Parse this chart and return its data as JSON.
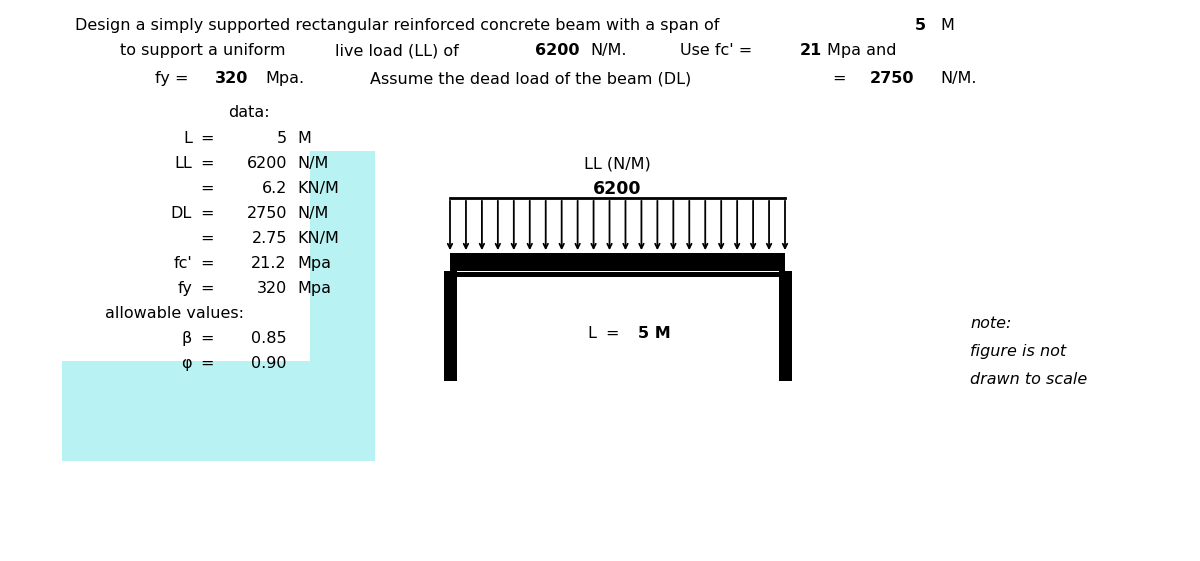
{
  "title_line1": "Design a simply supported rectangular reinforced concrete beam with a span of",
  "title_span": "5  M",
  "title_line2": "to support a uniform",
  "title_ll_label": "live load (LL) of",
  "title_ll_val": "6200",
  "title_ll_unit": "N/M.",
  "title_fc_label": "Use fc' =",
  "title_fc_val": "21",
  "title_fc_unit": "Mpa and",
  "title_line3_fy": "fy =",
  "title_line3_fy_val": "320",
  "title_line3_fy_unit": "Mpa.",
  "title_dl_label": "Assume the dead load of the beam (DL)",
  "title_dl_eq": "=",
  "title_dl_val": "2750",
  "title_dl_unit": "N/M.",
  "data_label": "data:",
  "fig_ll_label": "LL (N/M)",
  "fig_ll_val": "6200",
  "fig_span_label": "L =",
  "fig_span_val": "5 M",
  "note_line1": "note:",
  "note_line2": "figure is not",
  "note_line3": "drawn to scale",
  "bg_color": "#b8f2f2"
}
